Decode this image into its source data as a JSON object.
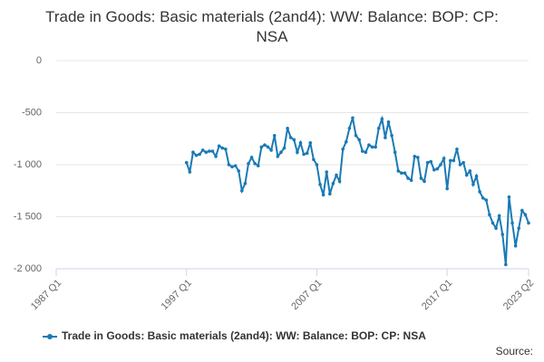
{
  "chart_data": {
    "type": "line",
    "title": "Trade in Goods: Basic materials (2and4): WW: Balance: BOP: CP: NSA",
    "source": "Source:",
    "x": [
      "1997 Q1",
      "1997 Q2",
      "1997 Q3",
      "1997 Q4",
      "1998 Q1",
      "1998 Q2",
      "1998 Q3",
      "1998 Q4",
      "1999 Q1",
      "1999 Q2",
      "1999 Q3",
      "1999 Q4",
      "2000 Q1",
      "2000 Q2",
      "2000 Q3",
      "2000 Q4",
      "2001 Q1",
      "2001 Q2",
      "2001 Q3",
      "2001 Q4",
      "2002 Q1",
      "2002 Q2",
      "2002 Q3",
      "2002 Q4",
      "2003 Q1",
      "2003 Q2",
      "2003 Q3",
      "2003 Q4",
      "2004 Q1",
      "2004 Q2",
      "2004 Q3",
      "2004 Q4",
      "2005 Q1",
      "2005 Q2",
      "2005 Q3",
      "2005 Q4",
      "2006 Q1",
      "2006 Q2",
      "2006 Q3",
      "2006 Q4",
      "2007 Q1",
      "2007 Q2",
      "2007 Q3",
      "2007 Q4",
      "2008 Q1",
      "2008 Q2",
      "2008 Q3",
      "2008 Q4",
      "2009 Q1",
      "2009 Q2",
      "2009 Q3",
      "2009 Q4",
      "2010 Q1",
      "2010 Q2",
      "2010 Q3",
      "2010 Q4",
      "2011 Q1",
      "2011 Q2",
      "2011 Q3",
      "2011 Q4",
      "2012 Q1",
      "2012 Q2",
      "2012 Q3",
      "2012 Q4",
      "2013 Q1",
      "2013 Q2",
      "2013 Q3",
      "2013 Q4",
      "2014 Q1",
      "2014 Q2",
      "2014 Q3",
      "2014 Q4",
      "2015 Q1",
      "2015 Q2",
      "2015 Q3",
      "2015 Q4",
      "2016 Q1",
      "2016 Q2",
      "2016 Q3",
      "2016 Q4",
      "2017 Q1",
      "2017 Q2",
      "2017 Q3",
      "2017 Q4",
      "2018 Q1",
      "2018 Q2",
      "2018 Q3",
      "2018 Q4",
      "2019 Q1",
      "2019 Q2",
      "2019 Q3",
      "2019 Q4",
      "2020 Q1",
      "2020 Q2",
      "2020 Q3",
      "2020 Q4",
      "2021 Q1",
      "2021 Q2",
      "2021 Q3",
      "2021 Q4",
      "2022 Q1",
      "2022 Q2",
      "2022 Q3",
      "2022 Q4",
      "2023 Q1",
      "2023 Q2"
    ],
    "series": [
      {
        "name": "Trade in Goods: Basic materials (2and4): WW: Balance: BOP: CP: NSA",
        "color": "#1a7ab5",
        "values": [
          -980,
          -1070,
          -880,
          -910,
          -900,
          -860,
          -880,
          -870,
          -870,
          -920,
          -820,
          -840,
          -850,
          -1000,
          -1020,
          -1010,
          -1060,
          -1250,
          -1180,
          -990,
          -930,
          -990,
          -1010,
          -830,
          -810,
          -830,
          -860,
          -720,
          -920,
          -880,
          -840,
          -650,
          -740,
          -760,
          -880,
          -790,
          -900,
          -890,
          -790,
          -950,
          -1000,
          -1190,
          -1290,
          -1070,
          -1280,
          -1180,
          -1100,
          -1160,
          -850,
          -780,
          -650,
          -550,
          -720,
          -760,
          -870,
          -880,
          -810,
          -830,
          -830,
          -650,
          -560,
          -740,
          -590,
          -720,
          -880,
          -1060,
          -1080,
          -1080,
          -1130,
          -1150,
          -920,
          -930,
          -1130,
          -1160,
          -980,
          -970,
          -1050,
          -1040,
          -1000,
          -940,
          -1230,
          -960,
          -960,
          -850,
          -1000,
          -980,
          -1100,
          -1060,
          -1190,
          -1110,
          -1260,
          -1320,
          -1340,
          -1480,
          -1560,
          -1610,
          -1490,
          -1670,
          -1960,
          -1310,
          -1560,
          -1780,
          -1610,
          -1440,
          -1480,
          -1560
        ]
      }
    ],
    "xlim": [
      "1987 Q1",
      "2023 Q2"
    ],
    "xticks": [
      "1987 Q1",
      "1997 Q1",
      "2007 Q1",
      "2017 Q1",
      "2023 Q2"
    ],
    "ylim": [
      -2000,
      0
    ],
    "yticks": [
      {
        "value": -2000,
        "label": "-2 000"
      },
      {
        "value": -1500,
        "label": "-1 500"
      },
      {
        "value": -1000,
        "label": "-1 000"
      },
      -500,
      0
    ],
    "grid": true
  }
}
